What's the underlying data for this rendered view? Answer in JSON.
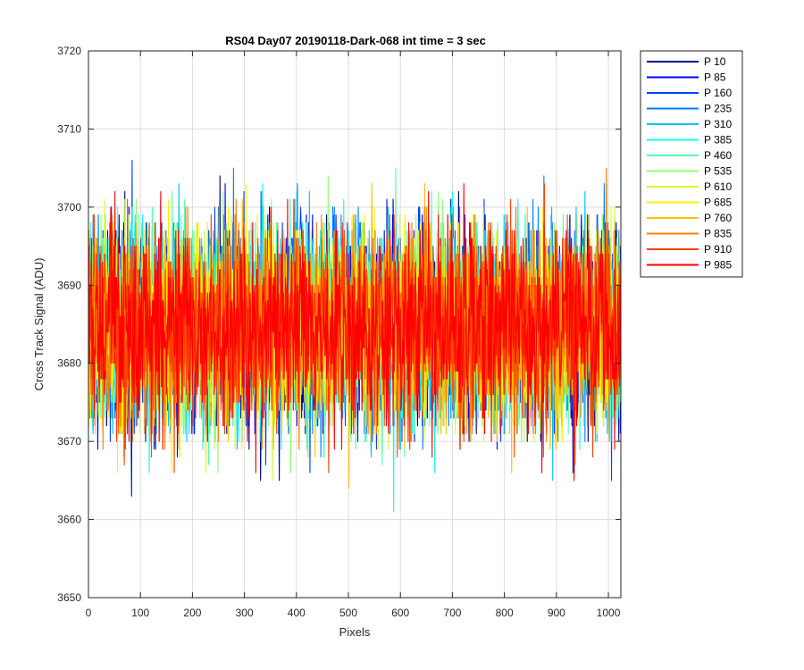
{
  "chart_data": {
    "type": "line",
    "title": "RS04 Day07 20190118-Dark-068 int time = 3 sec",
    "xlabel": "Pixels",
    "ylabel": "Cross Track Signal (ADU)",
    "xlim": [
      0,
      1024
    ],
    "ylim": [
      3650,
      3720
    ],
    "xticks": [
      "0",
      "100",
      "200",
      "300",
      "400",
      "500",
      "600",
      "700",
      "800",
      "900",
      "1000"
    ],
    "yticks": [
      "3650",
      "3660",
      "3670",
      "3680",
      "3690",
      "3700",
      "3710",
      "3720"
    ],
    "grid": true,
    "legend_position": "outside-top-right",
    "n_pixels": 1024,
    "series": [
      {
        "name": "P 10",
        "color": "#00008f",
        "mean": 3684.5,
        "spread": 6.3
      },
      {
        "name": "P 85",
        "color": "#0000ff",
        "mean": 3684.5,
        "spread": 6.3
      },
      {
        "name": "P 160",
        "color": "#0040ff",
        "mean": 3684.5,
        "spread": 6.3
      },
      {
        "name": "P 235",
        "color": "#0080ff",
        "mean": 3684.5,
        "spread": 6.3
      },
      {
        "name": "P 310",
        "color": "#00bfff",
        "mean": 3684.5,
        "spread": 6.3
      },
      {
        "name": "P 385",
        "color": "#10ffef",
        "mean": 3684.5,
        "spread": 6.3
      },
      {
        "name": "P 460",
        "color": "#50ffaf",
        "mean": 3684.5,
        "spread": 6.3
      },
      {
        "name": "P 535",
        "color": "#8fff70",
        "mean": 3684.5,
        "spread": 6.3
      },
      {
        "name": "P 610",
        "color": "#cfff30",
        "mean": 3684.5,
        "spread": 6.3
      },
      {
        "name": "P 685",
        "color": "#ffef00",
        "mean": 3684.5,
        "spread": 6.3
      },
      {
        "name": "P 760",
        "color": "#ffbf00",
        "mean": 3684.5,
        "spread": 6.3
      },
      {
        "name": "P 835",
        "color": "#ff8000",
        "mean": 3684.5,
        "spread": 6.3
      },
      {
        "name": "P 910",
        "color": "#ff4000",
        "mean": 3684.5,
        "spread": 6.3
      },
      {
        "name": "P 985",
        "color": "#ff0000",
        "mean": 3684.5,
        "spread": 6.3
      }
    ]
  }
}
